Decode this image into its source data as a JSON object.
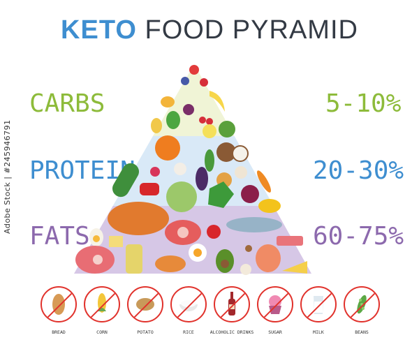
{
  "title": {
    "keto": "KETO",
    "rest": "FOOD PYRAMID"
  },
  "levels": [
    {
      "name": "CARBS",
      "range": "5-10%",
      "color": "#8dbb3a"
    },
    {
      "name": "PROTEIN",
      "range": "20-30%",
      "color": "#3e8ed0"
    },
    {
      "name": "FATS",
      "range": "60-75%",
      "color": "#8c69ad"
    }
  ],
  "pyramid_colors": {
    "carbs_band": "#f0f4d6",
    "protein_band": "#d9e9f7",
    "fats_band": "#d6c7e6"
  },
  "forbidden_foods": [
    {
      "label": "BREAD",
      "icon": "bread-icon"
    },
    {
      "label": "CORN",
      "icon": "corn-icon"
    },
    {
      "label": "POTATO",
      "icon": "potato-icon"
    },
    {
      "label": "RICE",
      "icon": "rice-icon"
    },
    {
      "label": "ALCOHOLIC DRINKS",
      "icon": "wine-bottle-icon"
    },
    {
      "label": "SUGAR",
      "icon": "cupcake-icon"
    },
    {
      "label": "MILK",
      "icon": "milk-icon"
    },
    {
      "label": "BEANS",
      "icon": "beans-icon"
    }
  ],
  "watermark": "Adobe Stock | #245946791"
}
